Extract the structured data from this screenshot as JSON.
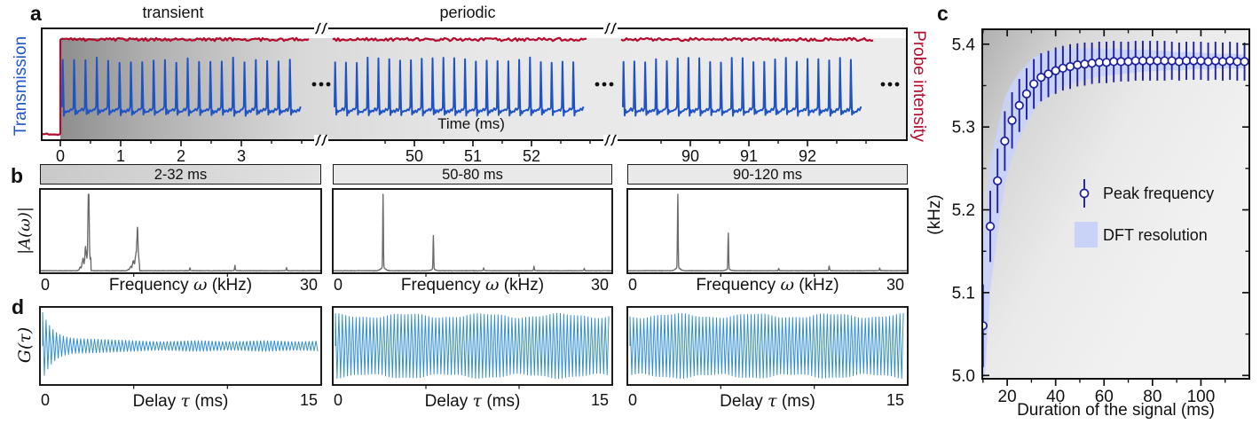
{
  "panel_letters": {
    "a": "a",
    "b": "b",
    "c": "c",
    "d": "d"
  },
  "chart_data": [
    {
      "id": "a",
      "type": "line",
      "xlabel": "Time (ms)",
      "ylabel_left": "Transmission",
      "ylabel_right": "Probe intensity",
      "region_labels": [
        "transient",
        "periodic"
      ],
      "ellipsis": "...",
      "x_segments": [
        {
          "range_ms": [
            -0.3,
            4.1
          ],
          "ticks": [
            0,
            1,
            2,
            3
          ],
          "minor_ticks": [
            0.5,
            1.5,
            2.5,
            3.5,
            4.0
          ]
        },
        {
          "range_ms": [
            48.6,
            53.0
          ],
          "ticks": [
            50,
            51,
            52
          ],
          "minor_ticks": [
            49.5,
            50.5,
            51.5,
            52.5,
            53.0
          ]
        },
        {
          "range_ms": [
            88.8,
            93.1
          ],
          "ticks": [
            90,
            91,
            92
          ],
          "minor_ticks": [
            89.5,
            90.5,
            91.5,
            92.5,
            93.0
          ]
        }
      ],
      "series": [
        {
          "name": "Probe intensity",
          "color": "#b30d2e",
          "behavior": "off before 0 ms, steps on at 0 ms, constant noisy level"
        },
        {
          "name": "Transmission",
          "color": "#1f53c4",
          "behavior": "relaxation-oscillation spike train at ~5.4 kHz starting at 0 ms"
        }
      ]
    },
    {
      "id": "b",
      "type": "line",
      "ylabel": "|A(ω)|",
      "xlabel_pre": "Frequency ",
      "xlabel_sym": "ω",
      "xlabel_post": " (kHz)",
      "x_min_label": "0",
      "x_max_label": "30",
      "xlim": [
        0,
        30
      ],
      "line_color": "#6a6a6a",
      "subplots": [
        {
          "window": "2-32 ms",
          "peaks": [
            {
              "f_kHz": 5.2,
              "h": 0.74,
              "broad": true
            },
            {
              "f_kHz": 10.4,
              "h": 0.42,
              "broad": true
            },
            {
              "f_kHz": 16.0,
              "h": 0.04
            },
            {
              "f_kHz": 20.8,
              "h": 0.07
            },
            {
              "f_kHz": 26.3,
              "h": 0.04
            }
          ]
        },
        {
          "window": "50-80 ms",
          "peaks": [
            {
              "f_kHz": 5.4,
              "h": 0.97
            },
            {
              "f_kHz": 10.8,
              "h": 0.44
            },
            {
              "f_kHz": 16.2,
              "h": 0.035
            },
            {
              "f_kHz": 21.6,
              "h": 0.055
            },
            {
              "f_kHz": 27.0,
              "h": 0.03
            }
          ]
        },
        {
          "window": "90-120 ms",
          "peaks": [
            {
              "f_kHz": 5.4,
              "h": 0.99
            },
            {
              "f_kHz": 10.8,
              "h": 0.47
            },
            {
              "f_kHz": 16.2,
              "h": 0.03
            },
            {
              "f_kHz": 21.6,
              "h": 0.06
            },
            {
              "f_kHz": 27.0,
              "h": 0.035
            }
          ]
        }
      ]
    },
    {
      "id": "c",
      "type": "scatter",
      "xlabel": "Duration of the signal (ms)",
      "ylabel": "(kHz)",
      "legend": [
        "Peak frequency",
        "DFT resolution"
      ],
      "marker_color": "#1e1f9e",
      "band_color": "#c9d3f8",
      "xlim": [
        9.7,
        120
      ],
      "ylim": [
        4.996,
        5.418
      ],
      "xticks": [
        20,
        40,
        60,
        80,
        100
      ],
      "yticks": [
        5.0,
        5.1,
        5.2,
        5.3,
        5.4
      ],
      "x": [
        10,
        13,
        16,
        19,
        22,
        25,
        28,
        31,
        34,
        37,
        40,
        43,
        46,
        49,
        52,
        55,
        58,
        61,
        64,
        67,
        70,
        73,
        76,
        79,
        82,
        85,
        88,
        91,
        94,
        97,
        100,
        103,
        106,
        109,
        112,
        115,
        118
      ],
      "y": [
        5.06,
        5.18,
        5.235,
        5.283,
        5.308,
        5.326,
        5.34,
        5.352,
        5.36,
        5.364,
        5.368,
        5.371,
        5.373,
        5.375,
        5.376,
        5.377,
        5.378,
        5.378,
        5.379,
        5.379,
        5.379,
        5.38,
        5.38,
        5.38,
        5.38,
        5.38,
        5.38,
        5.379,
        5.38,
        5.38,
        5.38,
        5.379,
        5.38,
        5.379,
        5.38,
        5.379,
        5.379
      ],
      "yerr": [
        0.05,
        0.043,
        0.039,
        0.036,
        0.034,
        0.032,
        0.031,
        0.03,
        0.029,
        0.028,
        0.028,
        0.027,
        0.027,
        0.026,
        0.026,
        0.025,
        0.025,
        0.025,
        0.025,
        0.024,
        0.024,
        0.024,
        0.024,
        0.024,
        0.024,
        0.024,
        0.023,
        0.023,
        0.023,
        0.023,
        0.023,
        0.023,
        0.023,
        0.023,
        0.023,
        0.023,
        0.023
      ],
      "band_halfwidth": [
        0.1,
        0.077,
        0.063,
        0.053,
        0.045,
        0.04,
        0.036,
        0.032,
        0.029,
        0.027,
        0.025,
        0.023,
        0.022,
        0.02,
        0.019,
        0.018,
        0.017,
        0.016,
        0.016,
        0.015,
        0.014,
        0.014,
        0.013,
        0.013,
        0.012,
        0.012,
        0.011,
        0.011,
        0.011,
        0.01,
        0.01,
        0.01,
        0.009,
        0.009,
        0.009,
        0.009,
        0.008
      ]
    },
    {
      "id": "d",
      "type": "line",
      "ylabel": "G(τ)",
      "xlabel_pre": "Delay ",
      "xlabel_sym": "τ",
      "xlabel_post": " (ms)",
      "x_min_label": "0",
      "x_max_label": "15",
      "xlim": [
        0,
        15
      ],
      "line_color": "#2f8dcd",
      "oscillation_frequency_kHz": 5.4,
      "subplots": [
        {
          "envelope": "decaying"
        },
        {
          "envelope": "constant"
        },
        {
          "envelope": "constant"
        }
      ]
    }
  ]
}
